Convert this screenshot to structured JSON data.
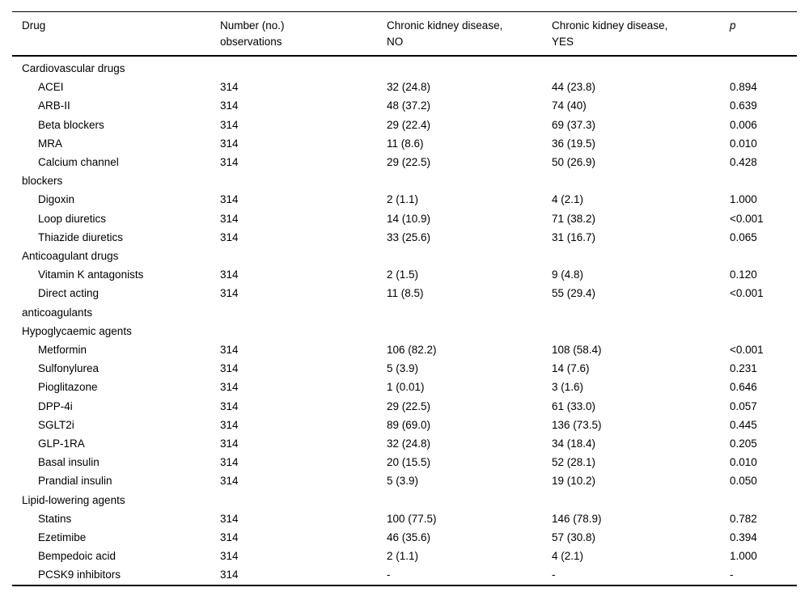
{
  "colors": {
    "background": "#ffffff",
    "text": "#000000",
    "rule": "#000000"
  },
  "table": {
    "header": {
      "drug": "Drug",
      "observations": "Number (no.)\nobservations",
      "ckd_no": "Chronic kidney disease,\nNO",
      "ckd_yes": "Chronic kidney disease,\nYES",
      "p": "p"
    },
    "rows": [
      {
        "type": "section",
        "label": "Cardiovascular drugs",
        "obs": "",
        "no": "",
        "yes": "",
        "p": ""
      },
      {
        "type": "item",
        "label": "ACEI",
        "obs": "314",
        "no": "32 (24.8)",
        "yes": "44 (23.8)",
        "p": "0.894"
      },
      {
        "type": "item",
        "label": "ARB-II",
        "obs": "314",
        "no": "48 (37.2)",
        "yes": "74 (40)",
        "p": "0.639"
      },
      {
        "type": "item",
        "label": "Beta blockers",
        "obs": "314",
        "no": "29 (22.4)",
        "yes": "69 (37.3)",
        "p": "0.006"
      },
      {
        "type": "item",
        "label": "MRA",
        "obs": "314",
        "no": "11 (8.6)",
        "yes": "36 (19.5)",
        "p": "0.010"
      },
      {
        "type": "item",
        "label": "Calcium channel\nblockers",
        "obs": "314",
        "no": "29 (22.5)",
        "yes": "50 (26.9)",
        "p": "0.428"
      },
      {
        "type": "item",
        "label": "Digoxin",
        "obs": "314",
        "no": "2 (1.1)",
        "yes": "4 (2.1)",
        "p": "1.000"
      },
      {
        "type": "item",
        "label": "Loop diuretics",
        "obs": "314",
        "no": "14 (10.9)",
        "yes": "71 (38.2)",
        "p": "<0.001"
      },
      {
        "type": "item",
        "label": "Thiazide diuretics",
        "obs": "314",
        "no": "33 (25.6)",
        "yes": "31 (16.7)",
        "p": "0.065"
      },
      {
        "type": "section",
        "label": "Anticoagulant drugs",
        "obs": "",
        "no": "",
        "yes": "",
        "p": ""
      },
      {
        "type": "item",
        "label": "Vitamin K antagonists",
        "obs": "314",
        "no": "2 (1.5)",
        "yes": "9 (4.8)",
        "p": "0.120"
      },
      {
        "type": "item",
        "label": "Direct acting\nanticoagulants",
        "obs": "314",
        "no": "11 (8.5)",
        "yes": "55 (29.4)",
        "p": "<0.001"
      },
      {
        "type": "section",
        "label": "Hypoglycaemic agents",
        "obs": "",
        "no": "",
        "yes": "",
        "p": ""
      },
      {
        "type": "item",
        "label": "Metformin",
        "obs": "314",
        "no": "106 (82.2)",
        "yes": "108 (58.4)",
        "p": "<0.001"
      },
      {
        "type": "item",
        "label": "Sulfonylurea",
        "obs": "314",
        "no": "5 (3.9)",
        "yes": "14 (7.6)",
        "p": "0.231"
      },
      {
        "type": "item",
        "label": "Pioglitazone",
        "obs": "314",
        "no": "1 (0.01)",
        "yes": "3 (1.6)",
        "p": "0.646"
      },
      {
        "type": "item",
        "label": "DPP-4i",
        "obs": "314",
        "no": "29 (22.5)",
        "yes": "61 (33.0)",
        "p": "0.057"
      },
      {
        "type": "item",
        "label": "SGLT2i",
        "obs": "314",
        "no": "89 (69.0)",
        "yes": "136 (73.5)",
        "p": "0.445"
      },
      {
        "type": "item",
        "label": "GLP-1RA",
        "obs": "314",
        "no": "32 (24.8)",
        "yes": "34 (18.4)",
        "p": "0.205"
      },
      {
        "type": "item",
        "label": "Basal insulin",
        "obs": "314",
        "no": "20 (15.5)",
        "yes": "52 (28.1)",
        "p": "0.010"
      },
      {
        "type": "item",
        "label": "Prandial insulin",
        "obs": "314",
        "no": "5 (3.9)",
        "yes": "19 (10.2)",
        "p": "0.050"
      },
      {
        "type": "section",
        "label": "Lipid-lowering agents",
        "obs": "",
        "no": "",
        "yes": "",
        "p": ""
      },
      {
        "type": "item",
        "label": "Statins",
        "obs": "314",
        "no": "100 (77.5)",
        "yes": "146 (78.9)",
        "p": "0.782"
      },
      {
        "type": "item",
        "label": "Ezetimibe",
        "obs": "314",
        "no": "46 (35.6)",
        "yes": "57 (30.8)",
        "p": "0.394"
      },
      {
        "type": "item",
        "label": "Bempedoic acid",
        "obs": "314",
        "no": "2 (1.1)",
        "yes": "4 (2.1)",
        "p": "1.000"
      },
      {
        "type": "item",
        "label": "PCSK9 inhibitors",
        "obs": "314",
        "no": "-",
        "yes": "-",
        "p": "-"
      }
    ]
  }
}
